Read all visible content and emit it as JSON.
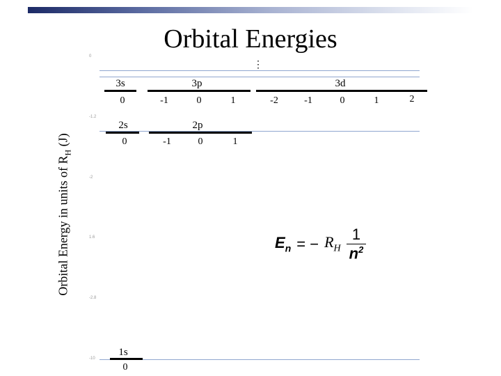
{
  "title": "Orbital Energies",
  "y_label_main": "Orbital Energy in units of R",
  "y_label_sub": "H",
  "y_label_unit": " (J)",
  "ticks": [
    "0",
    "-1.2",
    "-2",
    "1.6",
    "-2.8",
    "-10"
  ],
  "levels": {
    "n3": {
      "s": {
        "label": "3s",
        "ml": [
          "0"
        ]
      },
      "p": {
        "label": "3p",
        "ml": [
          "-1",
          "0",
          "1"
        ]
      },
      "d": {
        "label": "3d",
        "ml": [
          "-2",
          "-1",
          "0",
          "1",
          "2"
        ]
      }
    },
    "n2": {
      "s": {
        "label": "2s",
        "ml": [
          "0"
        ]
      },
      "p": {
        "label": "2p",
        "ml": [
          "-1",
          "0",
          "1"
        ]
      }
    },
    "n1": {
      "s": {
        "label": "1s",
        "ml": [
          "0"
        ]
      }
    }
  },
  "vdots": "⋮",
  "formula": {
    "lhs": "E",
    "lhs_sub": "n",
    "eq": "= −",
    "const": "R",
    "const_sub": "H",
    "num": "1",
    "den": "n",
    "den_sup": "2"
  }
}
